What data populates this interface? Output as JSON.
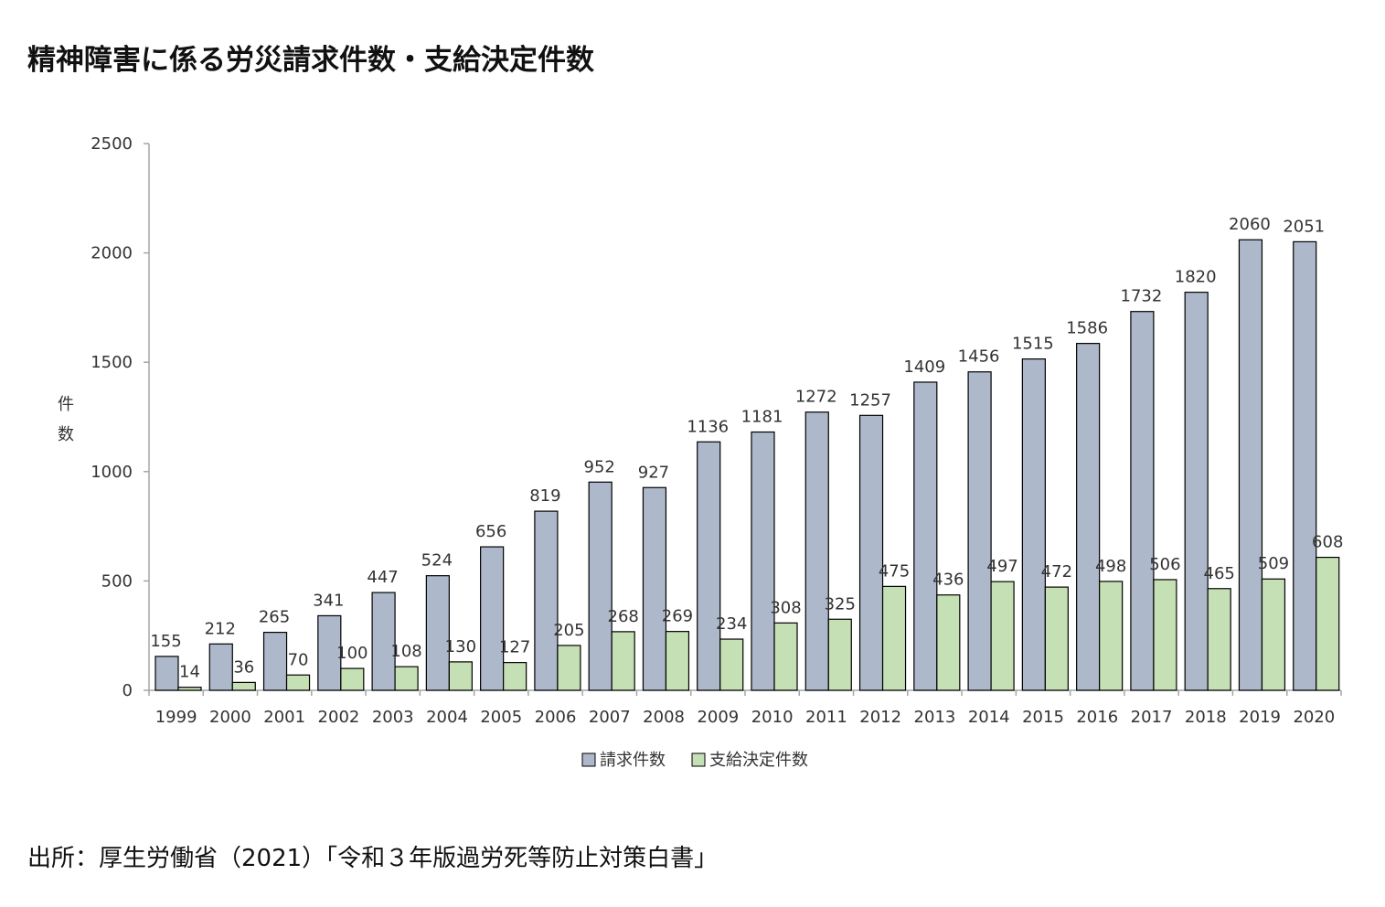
{
  "title": "精神障害に係る労災請求件数・支給決定件数",
  "source": "出所：厚生労働省（2021）「令和３年版過労死等防止対策白書」",
  "colors": {
    "claims": "#adb9ca",
    "approved": "#c5e0b4",
    "stroke": "#000000",
    "axis": "#a6a6a6"
  },
  "chart_data": {
    "type": "bar",
    "categories": [
      "1999",
      "2000",
      "2001",
      "2002",
      "2003",
      "2004",
      "2005",
      "2006",
      "2007",
      "2008",
      "2009",
      "2010",
      "2011",
      "2012",
      "2013",
      "2014",
      "2015",
      "2016",
      "2017",
      "2018",
      "2019",
      "2020"
    ],
    "series": [
      {
        "name": "請求件数",
        "values": [
          155,
          212,
          265,
          341,
          447,
          524,
          656,
          819,
          952,
          927,
          1136,
          1181,
          1272,
          1257,
          1409,
          1456,
          1515,
          1586,
          1732,
          1820,
          2060,
          2051
        ]
      },
      {
        "name": "支給決定件数",
        "values": [
          14,
          36,
          70,
          100,
          108,
          130,
          127,
          205,
          268,
          269,
          234,
          308,
          325,
          475,
          436,
          497,
          472,
          498,
          506,
          465,
          509,
          608
        ]
      }
    ],
    "ylabel": "件数",
    "ylim": [
      0,
      2500
    ],
    "yticks": [
      "0",
      "500",
      "1000",
      "1500",
      "2000",
      "2500"
    ],
    "grid": false,
    "data_labels": true,
    "legend_position": "bottom"
  }
}
